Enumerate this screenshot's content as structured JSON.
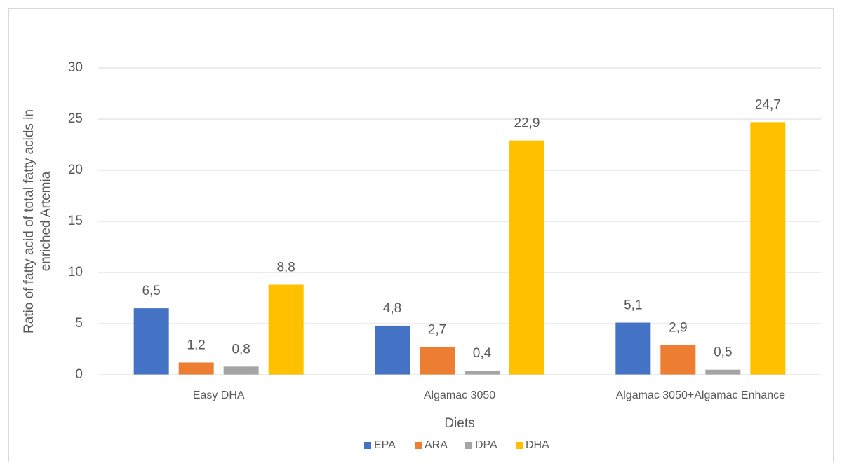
{
  "chart_data": {
    "type": "bar",
    "ylabel": [
      "Ratio of fatty acid of total fatty acids in",
      "enriched Artemia"
    ],
    "xlabel": "Diets",
    "categories": [
      "Easy DHA",
      "Algamac 3050",
      "Algamac 3050+Algamac Enhance"
    ],
    "series": [
      {
        "name": "EPA",
        "color": "#4472c4",
        "values": [
          6.5,
          4.8,
          5.1
        ],
        "value_labels": [
          "6,5",
          "4,8",
          "5,1"
        ]
      },
      {
        "name": "ARA",
        "color": "#ed7d31",
        "values": [
          1.2,
          2.7,
          2.9
        ],
        "value_labels": [
          "1,2",
          "2,7",
          "2,9"
        ]
      },
      {
        "name": "DPA",
        "color": "#a5a5a5",
        "values": [
          0.8,
          0.4,
          0.5
        ],
        "value_labels": [
          "0,8",
          "0,4",
          "0,5"
        ]
      },
      {
        "name": "DHA",
        "color": "#ffc000",
        "values": [
          8.8,
          22.9,
          24.7
        ],
        "value_labels": [
          "8,8",
          "22,9",
          "24,7"
        ]
      }
    ],
    "ylim": [
      0,
      30
    ],
    "yticks": [
      0,
      5,
      10,
      15,
      20,
      25,
      30
    ],
    "grid": true,
    "legend": "bottom"
  }
}
